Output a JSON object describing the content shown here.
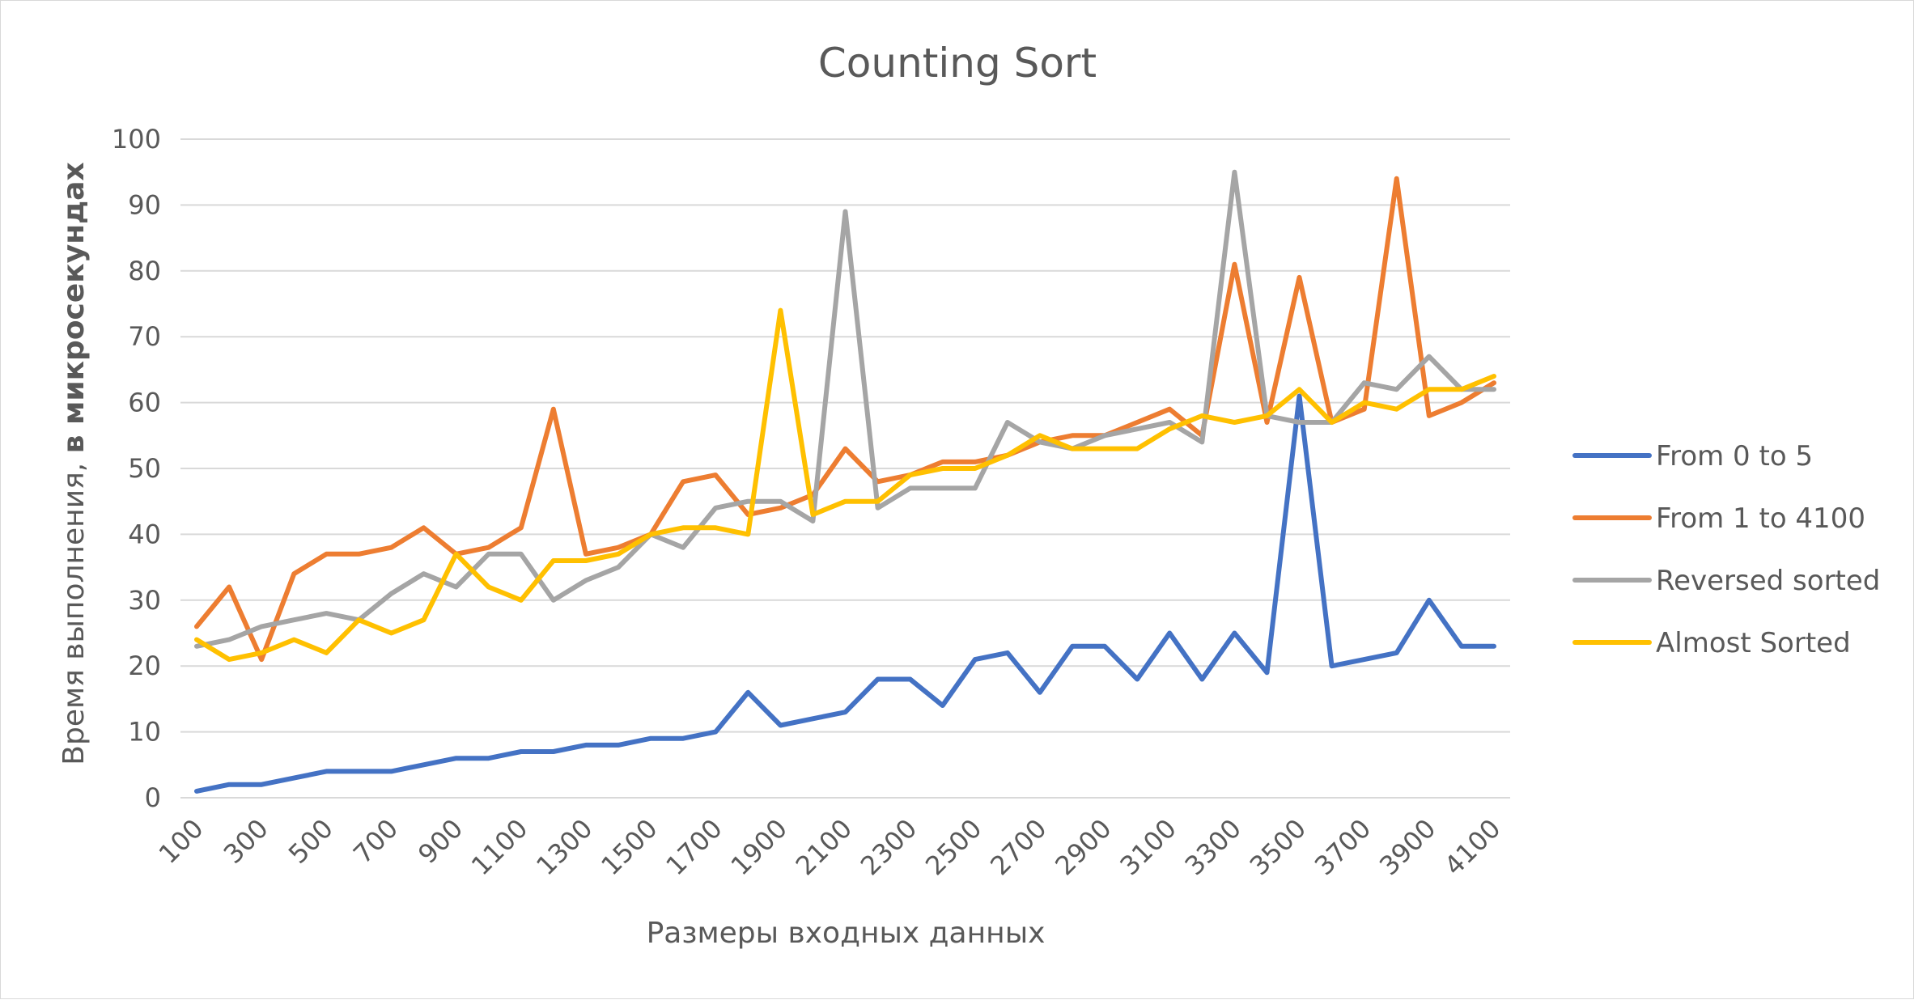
{
  "chart_data": {
    "type": "line",
    "title": "Counting Sort",
    "xlabel": "Размеры входных данных",
    "ylabel": {
      "normal": "Время выполнения, ",
      "bold": "в микросекундах"
    },
    "ylim": [
      0,
      100
    ],
    "yticks": [
      "0",
      "10",
      "20",
      "30",
      "40",
      "50",
      "60",
      "70",
      "80",
      "90",
      "100"
    ],
    "x": [
      100,
      200,
      300,
      400,
      500,
      600,
      700,
      800,
      900,
      1000,
      1100,
      1200,
      1300,
      1400,
      1500,
      1600,
      1700,
      1800,
      1900,
      2000,
      2100,
      2200,
      2300,
      2400,
      2500,
      2600,
      2700,
      2800,
      2900,
      3000,
      3100,
      3200,
      3300,
      3400,
      3500,
      3600,
      3700,
      3800,
      3900,
      4000,
      4100
    ],
    "xtick_labels": [
      "100",
      "300",
      "500",
      "700",
      "900",
      "1100",
      "1300",
      "1500",
      "1700",
      "1900",
      "2100",
      "2300",
      "2500",
      "2700",
      "2900",
      "3100",
      "3300",
      "3500",
      "3700",
      "3900",
      "4100"
    ],
    "grid": true,
    "legend_position": "right",
    "series": [
      {
        "name": "From 0 to 5",
        "color": "#4472C4",
        "values": [
          1,
          2,
          2,
          3,
          4,
          4,
          4,
          5,
          6,
          6,
          7,
          7,
          8,
          8,
          9,
          9,
          10,
          16,
          11,
          12,
          13,
          18,
          18,
          14,
          21,
          22,
          16,
          23,
          23,
          18,
          25,
          18,
          25,
          19,
          61,
          20,
          21,
          22,
          30,
          23,
          23
        ]
      },
      {
        "name": "From 1 to 4100",
        "color": "#ED7D31",
        "values": [
          26,
          32,
          21,
          34,
          37,
          37,
          38,
          41,
          37,
          38,
          41,
          59,
          37,
          38,
          40,
          48,
          49,
          43,
          44,
          46,
          53,
          48,
          49,
          51,
          51,
          52,
          54,
          55,
          55,
          57,
          59,
          55,
          81,
          57,
          79,
          57,
          59,
          94,
          58,
          60,
          63
        ]
      },
      {
        "name": "Reversed sorted",
        "color": "#A5A5A5",
        "values": [
          23,
          24,
          26,
          27,
          28,
          27,
          31,
          34,
          32,
          37,
          37,
          30,
          33,
          35,
          40,
          38,
          44,
          45,
          45,
          42,
          89,
          44,
          47,
          47,
          47,
          57,
          54,
          53,
          55,
          56,
          57,
          54,
          95,
          58,
          57,
          57,
          63,
          62,
          67,
          62,
          62
        ]
      },
      {
        "name": "Almost Sorted",
        "color": "#FFC000",
        "values": [
          24,
          21,
          22,
          24,
          22,
          27,
          25,
          27,
          37,
          32,
          30,
          36,
          36,
          37,
          40,
          41,
          41,
          40,
          74,
          43,
          45,
          45,
          49,
          50,
          50,
          52,
          55,
          53,
          53,
          53,
          56,
          58,
          57,
          58,
          62,
          57,
          60,
          59,
          62,
          62,
          64
        ]
      }
    ]
  }
}
